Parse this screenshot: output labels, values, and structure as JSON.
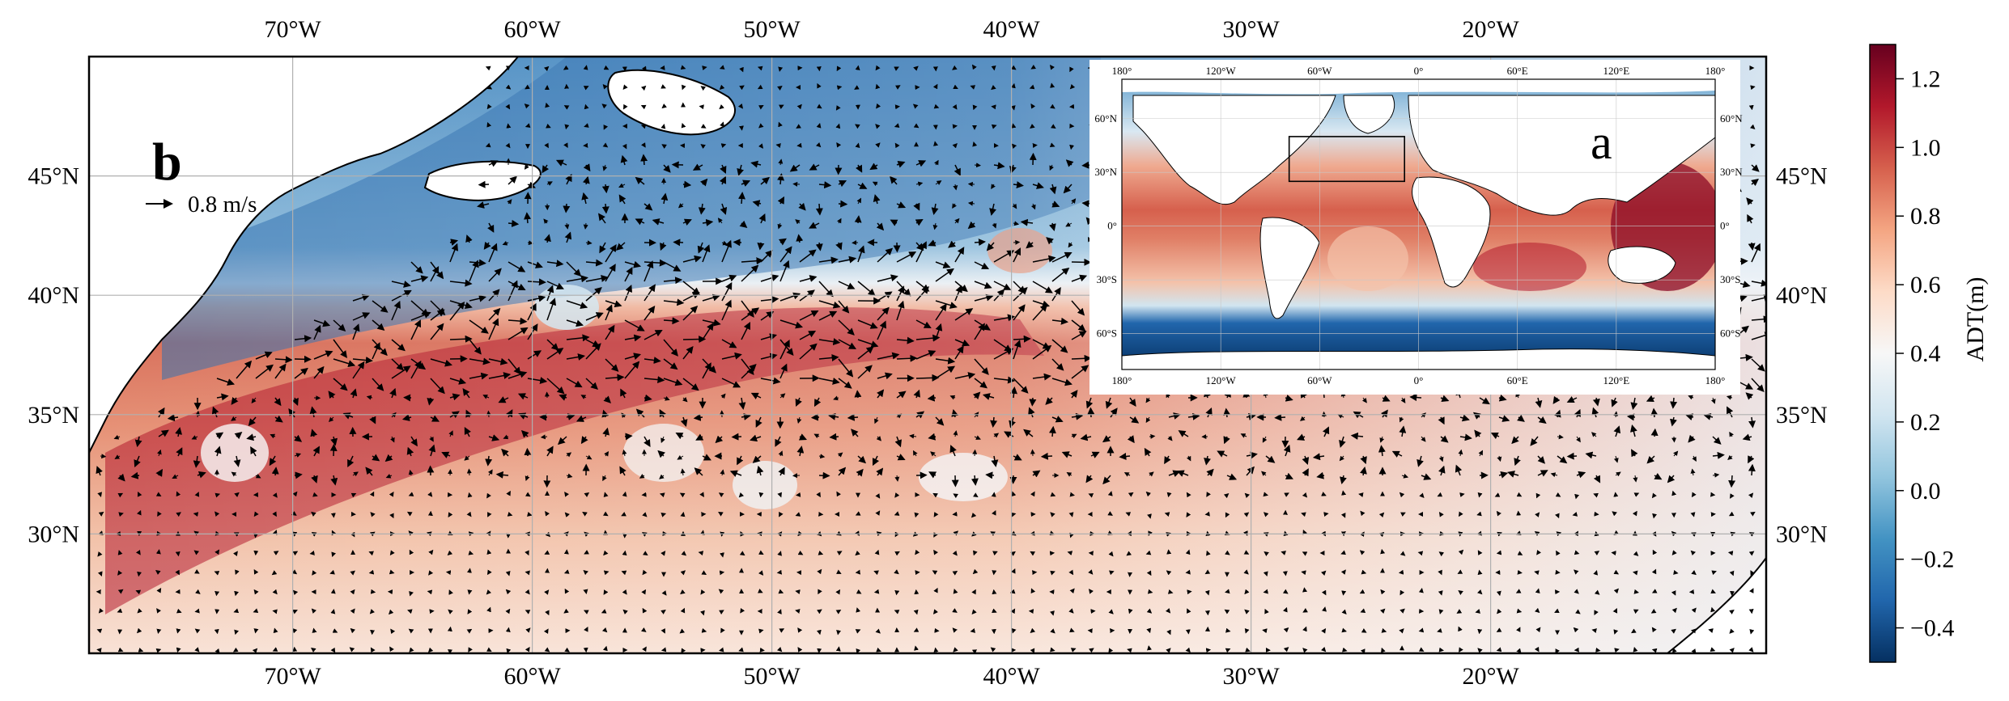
{
  "panel_b": {
    "label": "b",
    "scale_arrow_label": "0.8 m/s",
    "lon_ticks": [
      "70°W",
      "60°W",
      "50°W",
      "40°W",
      "30°W",
      "20°W"
    ],
    "lat_ticks": [
      "45°N",
      "40°N",
      "35°N",
      "30°N"
    ],
    "lon_values": [
      -70,
      -60,
      -50,
      -40,
      -30,
      -20
    ],
    "lat_values": [
      45,
      40,
      35,
      30
    ],
    "lon_range": [
      -78.5,
      -8.5
    ],
    "lat_range": [
      25,
      50
    ]
  },
  "panel_a": {
    "label": "a",
    "lon_ticks": [
      "180°",
      "120°W",
      "60°W",
      "0°",
      "60°E",
      "120°E",
      "180°"
    ],
    "lat_ticks": [
      "60°N",
      "30°N",
      "0°",
      "30°S",
      "60°S"
    ],
    "lon_values": [
      -180,
      -120,
      -60,
      0,
      60,
      120,
      180
    ],
    "lat_values": [
      60,
      30,
      0,
      -30,
      -60
    ],
    "lat_range": [
      -80,
      82
    ],
    "inset_box_lon": [
      -78.5,
      -8.5
    ],
    "inset_box_lat": [
      25,
      50
    ]
  },
  "colorbar": {
    "label": "ADT(m)",
    "ticks": [
      "1.2",
      "1.0",
      "0.8",
      "0.6",
      "0.4",
      "0.2",
      "0.0",
      "−0.2",
      "−0.4"
    ],
    "tick_values": [
      1.2,
      1.0,
      0.8,
      0.6,
      0.4,
      0.2,
      0.0,
      -0.2,
      -0.4
    ],
    "range": [
      -0.5,
      1.3
    ],
    "colors_low_to_high": [
      "#053061",
      "#2166ac",
      "#4393c3",
      "#92c5de",
      "#d1e5f0",
      "#f7f7f7",
      "#fddbc7",
      "#f4a582",
      "#d6604d",
      "#b2182b",
      "#67001f"
    ]
  }
}
